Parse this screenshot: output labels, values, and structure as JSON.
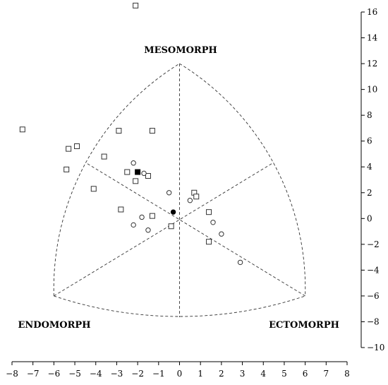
{
  "chart_data": {
    "type": "scatter",
    "title": "",
    "xlabel": "",
    "ylabel": "",
    "xlim": [
      -8,
      8
    ],
    "ylim": [
      -10,
      16
    ],
    "x_ticks": [
      -8,
      -7,
      -6,
      -5,
      -4,
      -3,
      -2,
      -1,
      0,
      1,
      2,
      3,
      4,
      5,
      6,
      7,
      8
    ],
    "y_ticks": [
      -10,
      -8,
      -6,
      -4,
      -2,
      0,
      2,
      4,
      6,
      8,
      10,
      12,
      14,
      16
    ],
    "y_axis_side": "right",
    "grid": false,
    "region_labels": {
      "mesomorph": "MESOMORPH",
      "endomorph": "ENDOMORPH",
      "ectomorph": "ECTOMORPH"
    },
    "somatochart_vertices": {
      "top": [
        0,
        12
      ],
      "left": [
        -6,
        -6
      ],
      "right": [
        6,
        -6
      ],
      "center": [
        0,
        0
      ]
    },
    "series": [
      {
        "marker": "square-open",
        "points": [
          [
            -2.1,
            16.5
          ],
          [
            -7.5,
            6.9
          ],
          [
            -5.3,
            5.4
          ],
          [
            -4.9,
            5.6
          ],
          [
            -5.4,
            3.8
          ],
          [
            -3.6,
            4.8
          ],
          [
            -2.9,
            6.8
          ],
          [
            -1.3,
            6.8
          ],
          [
            -2.5,
            3.6
          ],
          [
            -2.1,
            2.9
          ],
          [
            -1.5,
            3.3
          ],
          [
            -4.1,
            2.3
          ],
          [
            -2.8,
            0.7
          ],
          [
            -1.3,
            0.2
          ],
          [
            -0.4,
            -0.6
          ],
          [
            0.7,
            2.0
          ],
          [
            0.8,
            1.7
          ],
          [
            1.4,
            0.5
          ],
          [
            1.4,
            -1.8
          ]
        ]
      },
      {
        "marker": "circle-open",
        "points": [
          [
            -2.2,
            4.3
          ],
          [
            -1.7,
            3.5
          ],
          [
            -0.5,
            2.0
          ],
          [
            -1.8,
            0.1
          ],
          [
            -2.2,
            -0.5
          ],
          [
            -1.5,
            -0.9
          ],
          [
            0.5,
            1.4
          ],
          [
            1.6,
            -0.3
          ],
          [
            2.0,
            -1.2
          ],
          [
            2.9,
            -3.4
          ]
        ]
      },
      {
        "marker": "square-filled",
        "points": [
          [
            -2.0,
            3.6
          ]
        ]
      },
      {
        "marker": "circle-filled",
        "points": [
          [
            -0.3,
            0.5
          ]
        ]
      }
    ]
  }
}
